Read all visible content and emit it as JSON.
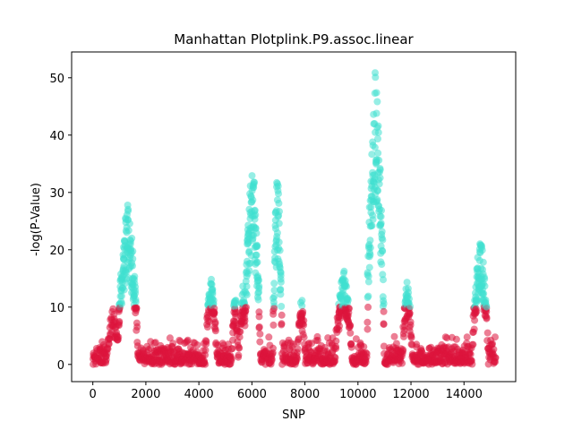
{
  "chart_data": {
    "type": "scatter",
    "title": "Manhattan Plotplink.P9.assoc.linear",
    "xlabel": "SNP",
    "ylabel": "-log(P-Value)",
    "xlim": [
      -800,
      15950
    ],
    "ylim": [
      -3,
      54.5
    ],
    "xticks": [
      0,
      2000,
      4000,
      6000,
      8000,
      10000,
      12000,
      14000
    ],
    "yticks": [
      0,
      10,
      20,
      30,
      40,
      50
    ],
    "grid": false,
    "threshold": 10,
    "n_points": 15200,
    "colors": {
      "below_threshold": "#dc143c",
      "above_threshold": "#40e0d0"
    },
    "peaks": [
      {
        "center": 750,
        "halfwidth": 250,
        "max": 9.8
      },
      {
        "center": 1300,
        "halfwidth": 380,
        "max": 28.5
      },
      {
        "center": 4450,
        "halfwidth": 220,
        "max": 15.5
      },
      {
        "center": 5350,
        "halfwidth": 130,
        "max": 13.5
      },
      {
        "center": 5650,
        "halfwidth": 170,
        "max": 14.0
      },
      {
        "center": 6000,
        "halfwidth": 300,
        "max": 36.5
      },
      {
        "center": 6950,
        "halfwidth": 170,
        "max": 35.5
      },
      {
        "center": 7850,
        "halfwidth": 150,
        "max": 12.7
      },
      {
        "center": 9450,
        "halfwidth": 320,
        "max": 16.8
      },
      {
        "center": 10650,
        "halfwidth": 320,
        "max": 52.0
      },
      {
        "center": 11850,
        "halfwidth": 180,
        "max": 15.3
      },
      {
        "center": 14600,
        "halfwidth": 300,
        "max": 23.0
      }
    ]
  }
}
